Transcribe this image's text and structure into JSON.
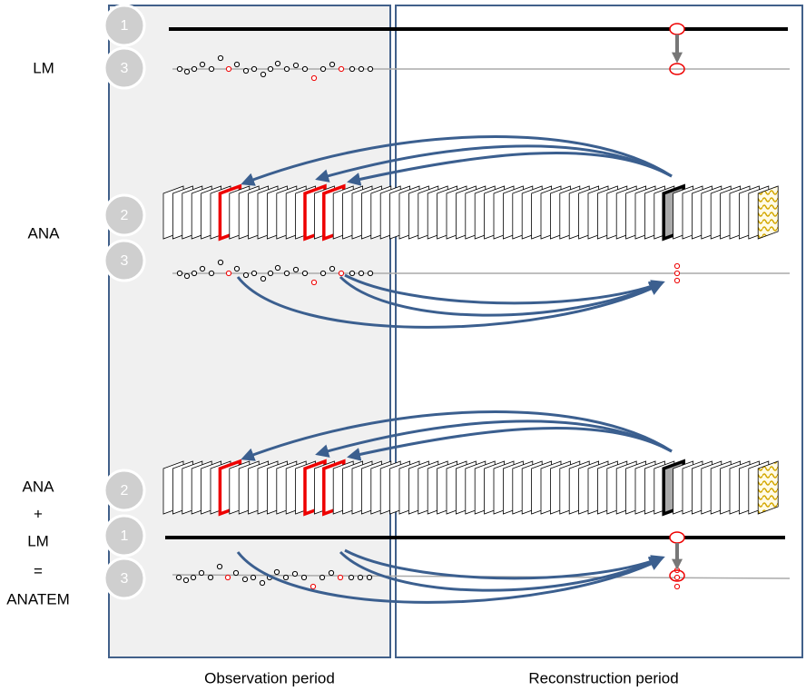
{
  "left_labels": {
    "lm_top": "LM",
    "ana": "ANA",
    "ana2": "ANA",
    "plus": "+",
    "lm2": "LM",
    "equals": "=",
    "anatem": "ANATEM"
  },
  "badges": [
    "1",
    "3",
    "2",
    "3",
    "2",
    "1",
    "3"
  ],
  "periods": {
    "observation": "Observation period",
    "reconstruction": "Reconstruction period"
  }
}
